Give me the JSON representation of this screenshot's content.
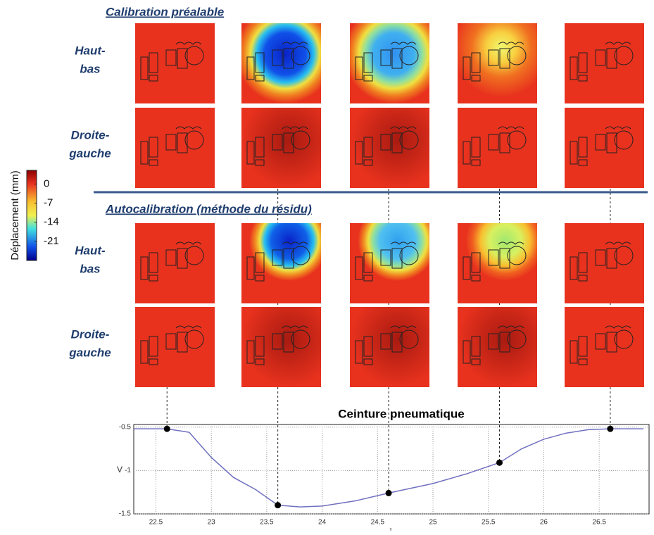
{
  "sections": [
    {
      "title": "Calibration préalable",
      "rows": [
        {
          "label": [
            "Haut-",
            "bas"
          ]
        },
        {
          "label": [
            "Droite-",
            "gauche"
          ]
        }
      ]
    },
    {
      "title": "Autocalibration (méthode du résidu)",
      "rows": [
        {
          "label": [
            "Haut-",
            "bas"
          ]
        },
        {
          "label": [
            "Droite-",
            "gauche"
          ]
        }
      ]
    }
  ],
  "colorbar": {
    "label": "Déplacement (mm)",
    "lim": [
      -28,
      5
    ],
    "ticks": [
      0,
      -7,
      -14,
      -21
    ]
  },
  "chart_data": {
    "type": "line",
    "title": "Ceinture pneumatique",
    "xlabel": "s",
    "ylabel": "V",
    "x": [
      22.3,
      22.6,
      22.8,
      23.0,
      23.2,
      23.4,
      23.6,
      23.8,
      24.0,
      24.3,
      24.6,
      25.0,
      25.3,
      25.6,
      25.8,
      26.0,
      26.2,
      26.4,
      26.6,
      26.9
    ],
    "series": [
      {
        "color": "#7070c0",
        "values": [
          -0.52,
          -0.52,
          -0.56,
          -0.85,
          -1.08,
          -1.22,
          -1.4,
          -1.42,
          -1.41,
          -1.35,
          -1.26,
          -1.15,
          -1.04,
          -0.91,
          -0.75,
          -0.64,
          -0.57,
          -0.53,
          -0.52,
          -0.52
        ]
      }
    ],
    "markers": {
      "color": "#000000",
      "x": [
        22.6,
        23.6,
        24.6,
        25.6,
        26.6
      ],
      "values": [
        -0.52,
        -1.4,
        -1.26,
        -0.91,
        -0.52
      ]
    },
    "xlim": [
      22.3,
      26.95
    ],
    "ylim": [
      -1.5,
      -0.47
    ],
    "xticks": [
      22.5,
      23,
      23.5,
      24,
      24.5,
      25,
      25.5,
      26,
      26.5
    ],
    "yticks": [
      -0.5,
      -1,
      -1.5
    ],
    "grid": true
  }
}
